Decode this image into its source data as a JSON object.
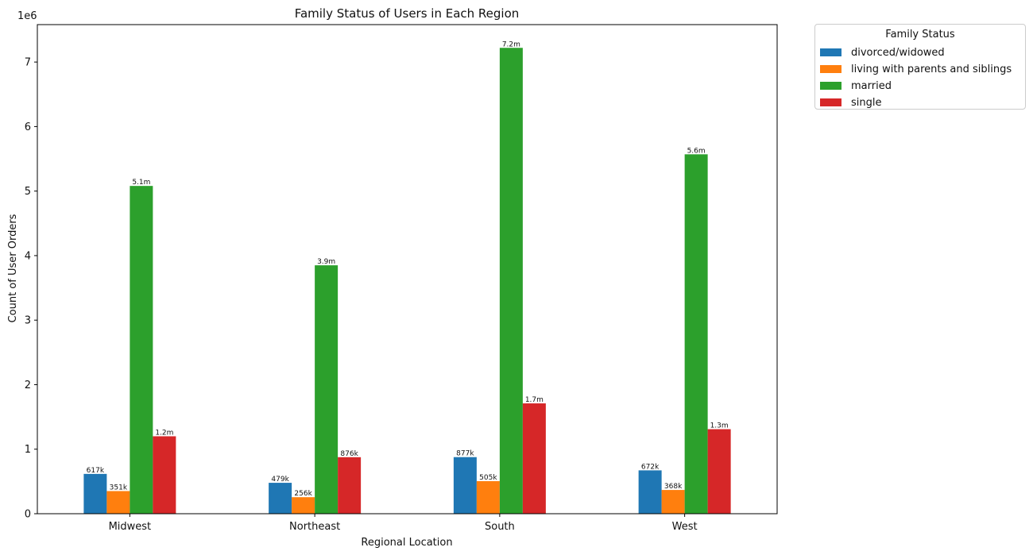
{
  "chart_data": {
    "type": "bar",
    "title": "Family Status of Users in Each Region",
    "xlabel": "Regional Location",
    "ylabel": "Count of User Orders",
    "y_offset_label": "1e6",
    "categories": [
      "Midwest",
      "Northeast",
      "South",
      "West"
    ],
    "ylim": [
      0,
      7580000
    ],
    "yticks": [
      0,
      1,
      2,
      3,
      4,
      5,
      6,
      7
    ],
    "yticks_scale": 1000000,
    "grid": false,
    "legend": {
      "title": "Family Status",
      "placement": "outside-top-right"
    },
    "series": [
      {
        "name": "divorced/widowed",
        "color": "#1f77b4",
        "values": [
          617000,
          479000,
          877000,
          672000
        ],
        "labels": [
          "617k",
          "479k",
          "877k",
          "672k"
        ]
      },
      {
        "name": "living with parents and siblings",
        "color": "#ff7f0e",
        "values": [
          351000,
          256000,
          505000,
          368000
        ],
        "labels": [
          "351k",
          "256k",
          "505k",
          "368k"
        ]
      },
      {
        "name": "married",
        "color": "#2ca02c",
        "values": [
          5080000,
          3850000,
          7220000,
          5570000
        ],
        "labels": [
          "5.1m",
          "3.9m",
          "7.2m",
          "5.6m"
        ]
      },
      {
        "name": "single",
        "color": "#d62728",
        "values": [
          1200000,
          876000,
          1710000,
          1310000
        ],
        "labels": [
          "1.2m",
          "876k",
          "1.7m",
          "1.3m"
        ]
      }
    ]
  }
}
